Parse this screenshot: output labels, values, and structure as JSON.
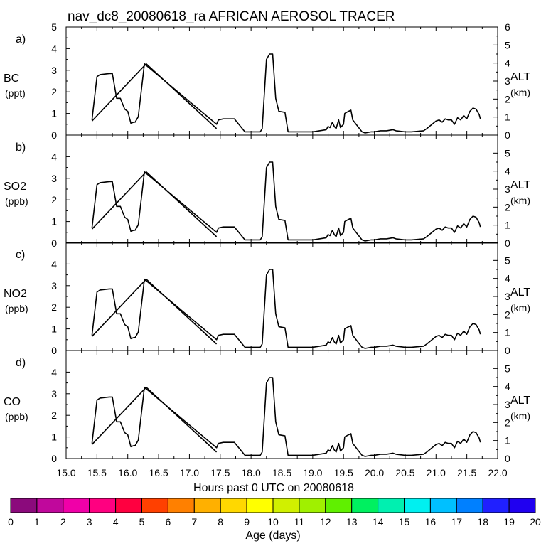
{
  "title": "nav_dc8_20080618_ra AFRICAN AEROSOL TRACER",
  "xlabel": "Hours past 0 UTC on 20080618",
  "x_ticks": [
    "15.0",
    "15.5",
    "16.0",
    "16.5",
    "17.0",
    "17.5",
    "18.0",
    "18.5",
    "19.0",
    "19.5",
    "20.0",
    "20.5",
    "21.0",
    "21.5",
    "22.0"
  ],
  "colorbar": {
    "label": "Age (days)",
    "ticks": [
      "0",
      "1",
      "2",
      "3",
      "4",
      "5",
      "6",
      "7",
      "8",
      "9",
      "10",
      "11",
      "12",
      "13",
      "14",
      "15",
      "16",
      "17",
      "18",
      "19",
      "20"
    ],
    "colors": [
      "#8b0a7c",
      "#c0089c",
      "#f000a8",
      "#ff0080",
      "#ff0040",
      "#ff4000",
      "#ff8000",
      "#ffb000",
      "#ffd800",
      "#ffff00",
      "#d0f000",
      "#a0f000",
      "#60f000",
      "#00f060",
      "#00f0b0",
      "#00f0f0",
      "#00c0ff",
      "#0080ff",
      "#2020ff",
      "#2000f0"
    ]
  },
  "chart_data": [
    {
      "type": "line",
      "panel_label": "a)",
      "ylabel": "BC",
      "yunit": "(ppt)",
      "y2label": "ALT",
      "y2unit": "(km)",
      "xlim": [
        15.0,
        22.0
      ],
      "ylim": [
        0,
        5
      ],
      "y2lim": [
        0,
        6
      ],
      "yticks": [
        "0",
        "1",
        "2",
        "3",
        "4",
        "5"
      ],
      "y2ticks": [
        "0",
        "1",
        "2",
        "3",
        "4",
        "5",
        "6"
      ],
      "series": [
        {
          "x": [
            15.42,
            15.5,
            15.55,
            15.7,
            15.75,
            15.82,
            15.85,
            15.88,
            15.95,
            16.0,
            16.05,
            16.1,
            16.12,
            16.17,
            16.25,
            16.27,
            17.44,
            17.47,
            17.55,
            17.7,
            17.73,
            17.9,
            18.15,
            18.18,
            18.25,
            18.3,
            18.35,
            18.4,
            18.45,
            18.55,
            18.6,
            19.0,
            19.22,
            19.25,
            19.28,
            19.32,
            19.35,
            19.38,
            19.42,
            19.45,
            19.5,
            19.52,
            19.58,
            19.62,
            19.65,
            19.8,
            19.85,
            19.95,
            20.0,
            20.1,
            20.2,
            20.3,
            20.35,
            20.5,
            20.6,
            20.8,
            20.85,
            21.0,
            21.05,
            21.1,
            21.15,
            21.2,
            21.25,
            21.3,
            21.35,
            21.4,
            21.45,
            21.5,
            21.55,
            21.6,
            21.65,
            21.7,
            21.72
          ],
          "y": [
            0.7,
            2.7,
            2.8,
            2.85,
            2.85,
            1.7,
            1.7,
            1.7,
            1.2,
            1.1,
            0.55,
            0.6,
            0.6,
            0.85,
            2.8,
            3.3,
            0.5,
            0.7,
            0.75,
            0.75,
            0.75,
            0.15,
            0.15,
            0.3,
            3.5,
            3.75,
            3.75,
            1.7,
            1.1,
            1.05,
            0.15,
            0.15,
            0.25,
            0.4,
            0.35,
            0.6,
            0.4,
            0.3,
            0.7,
            0.35,
            0.5,
            1.0,
            1.1,
            1.15,
            0.7,
            0.15,
            0.1,
            0.15,
            0.15,
            0.2,
            0.2,
            0.25,
            0.2,
            0.15,
            0.15,
            0.2,
            0.3,
            0.65,
            0.7,
            0.6,
            0.75,
            0.7,
            0.7,
            0.5,
            0.8,
            0.7,
            0.9,
            0.75,
            1.1,
            1.25,
            1.2,
            0.95,
            0.75
          ]
        },
        {
          "x": [
            15.42,
            16.3,
            17.44
          ],
          "y": [
            0.65,
            3.3,
            0.3
          ]
        }
      ]
    },
    {
      "type": "line",
      "panel_label": "b)",
      "ylabel": "SO2",
      "yunit": "(ppb)",
      "y2label": "ALT",
      "y2unit": "(km)",
      "xlim": [
        15.0,
        22.0
      ],
      "ylim": [
        0,
        5
      ],
      "y2lim": [
        0,
        6
      ],
      "yticks": [
        "0",
        "1",
        "2",
        "3",
        "4"
      ],
      "y2ticks": [
        "0",
        "1",
        "2",
        "3",
        "4",
        "5"
      ],
      "series": [
        {
          "x": [
            15.42,
            15.5,
            15.55,
            15.7,
            15.75,
            15.82,
            15.85,
            15.88,
            15.95,
            16.0,
            16.05,
            16.1,
            16.12,
            16.17,
            16.25,
            16.27,
            17.44,
            17.47,
            17.55,
            17.7,
            17.73,
            17.9,
            18.15,
            18.18,
            18.25,
            18.3,
            18.35,
            18.4,
            18.45,
            18.55,
            18.6,
            19.0,
            19.22,
            19.25,
            19.28,
            19.32,
            19.35,
            19.38,
            19.42,
            19.45,
            19.5,
            19.52,
            19.58,
            19.62,
            19.65,
            19.8,
            19.85,
            19.95,
            20.0,
            20.1,
            20.2,
            20.3,
            20.35,
            20.5,
            20.6,
            20.8,
            20.85,
            21.0,
            21.05,
            21.1,
            21.15,
            21.2,
            21.25,
            21.3,
            21.35,
            21.4,
            21.45,
            21.5,
            21.55,
            21.6,
            21.65,
            21.7,
            21.72
          ],
          "y": [
            0.7,
            2.7,
            2.8,
            2.85,
            2.85,
            1.7,
            1.7,
            1.7,
            1.2,
            1.1,
            0.55,
            0.6,
            0.6,
            0.85,
            2.8,
            3.3,
            0.5,
            0.7,
            0.75,
            0.75,
            0.75,
            0.15,
            0.15,
            0.3,
            3.5,
            3.75,
            3.75,
            1.7,
            1.1,
            1.05,
            0.15,
            0.15,
            0.25,
            0.4,
            0.35,
            0.6,
            0.4,
            0.3,
            0.7,
            0.35,
            0.5,
            1.0,
            1.1,
            1.15,
            0.7,
            0.15,
            0.1,
            0.15,
            0.15,
            0.2,
            0.2,
            0.25,
            0.2,
            0.15,
            0.15,
            0.2,
            0.3,
            0.65,
            0.7,
            0.6,
            0.75,
            0.7,
            0.7,
            0.5,
            0.8,
            0.7,
            0.9,
            0.75,
            1.1,
            1.25,
            1.2,
            0.95,
            0.75
          ]
        },
        {
          "x": [
            15.42,
            16.3,
            17.44
          ],
          "y": [
            0.65,
            3.3,
            0.3
          ]
        }
      ]
    },
    {
      "type": "line",
      "panel_label": "c)",
      "ylabel": "NO2",
      "yunit": "(ppb)",
      "y2label": "ALT",
      "y2unit": "(km)",
      "xlim": [
        15.0,
        22.0
      ],
      "ylim": [
        0,
        5
      ],
      "y2lim": [
        0,
        6
      ],
      "yticks": [
        "0",
        "1",
        "2",
        "3",
        "4"
      ],
      "y2ticks": [
        "0",
        "1",
        "2",
        "3",
        "4",
        "5"
      ],
      "series": [
        {
          "x": [
            15.42,
            15.5,
            15.55,
            15.7,
            15.75,
            15.82,
            15.85,
            15.88,
            15.95,
            16.0,
            16.05,
            16.1,
            16.12,
            16.17,
            16.25,
            16.27,
            17.44,
            17.47,
            17.55,
            17.7,
            17.73,
            17.9,
            18.15,
            18.18,
            18.25,
            18.3,
            18.35,
            18.4,
            18.45,
            18.55,
            18.6,
            19.0,
            19.22,
            19.25,
            19.28,
            19.32,
            19.35,
            19.38,
            19.42,
            19.45,
            19.5,
            19.52,
            19.58,
            19.62,
            19.65,
            19.8,
            19.85,
            19.95,
            20.0,
            20.1,
            20.2,
            20.3,
            20.35,
            20.5,
            20.6,
            20.8,
            20.85,
            21.0,
            21.05,
            21.1,
            21.15,
            21.2,
            21.25,
            21.3,
            21.35,
            21.4,
            21.45,
            21.5,
            21.55,
            21.6,
            21.65,
            21.7,
            21.72
          ],
          "y": [
            0.7,
            2.7,
            2.8,
            2.85,
            2.85,
            1.7,
            1.7,
            1.7,
            1.2,
            1.1,
            0.55,
            0.6,
            0.6,
            0.85,
            2.8,
            3.3,
            0.5,
            0.7,
            0.75,
            0.75,
            0.75,
            0.15,
            0.15,
            0.3,
            3.5,
            3.75,
            3.75,
            1.7,
            1.1,
            1.05,
            0.15,
            0.15,
            0.25,
            0.4,
            0.35,
            0.6,
            0.4,
            0.3,
            0.7,
            0.35,
            0.5,
            1.0,
            1.1,
            1.15,
            0.7,
            0.15,
            0.1,
            0.15,
            0.15,
            0.2,
            0.2,
            0.25,
            0.2,
            0.15,
            0.15,
            0.2,
            0.3,
            0.65,
            0.7,
            0.6,
            0.75,
            0.7,
            0.7,
            0.5,
            0.8,
            0.7,
            0.9,
            0.75,
            1.1,
            1.25,
            1.2,
            0.95,
            0.75
          ]
        },
        {
          "x": [
            15.42,
            16.3,
            17.44
          ],
          "y": [
            0.65,
            3.3,
            0.3
          ]
        }
      ]
    },
    {
      "type": "line",
      "panel_label": "d)",
      "ylabel": "CO",
      "yunit": "(ppb)",
      "y2label": "ALT",
      "y2unit": "(km)",
      "xlim": [
        15.0,
        22.0
      ],
      "ylim": [
        0,
        5
      ],
      "y2lim": [
        0,
        6
      ],
      "yticks": [
        "0",
        "1",
        "2",
        "3",
        "4"
      ],
      "y2ticks": [
        "0",
        "1",
        "2",
        "3",
        "4",
        "5"
      ],
      "series": [
        {
          "x": [
            15.42,
            15.5,
            15.55,
            15.7,
            15.75,
            15.82,
            15.85,
            15.88,
            15.95,
            16.0,
            16.05,
            16.1,
            16.12,
            16.17,
            16.25,
            16.27,
            17.44,
            17.47,
            17.55,
            17.7,
            17.73,
            17.9,
            18.15,
            18.18,
            18.25,
            18.3,
            18.35,
            18.4,
            18.45,
            18.55,
            18.6,
            19.0,
            19.22,
            19.25,
            19.28,
            19.32,
            19.35,
            19.38,
            19.42,
            19.45,
            19.5,
            19.52,
            19.58,
            19.62,
            19.65,
            19.8,
            19.85,
            19.95,
            20.0,
            20.1,
            20.2,
            20.3,
            20.35,
            20.5,
            20.6,
            20.8,
            20.85,
            21.0,
            21.05,
            21.1,
            21.15,
            21.2,
            21.25,
            21.3,
            21.35,
            21.4,
            21.45,
            21.5,
            21.55,
            21.6,
            21.65,
            21.7,
            21.72
          ],
          "y": [
            0.7,
            2.7,
            2.8,
            2.85,
            2.85,
            1.7,
            1.7,
            1.7,
            1.2,
            1.1,
            0.55,
            0.6,
            0.6,
            0.85,
            2.8,
            3.3,
            0.5,
            0.7,
            0.75,
            0.75,
            0.75,
            0.15,
            0.15,
            0.3,
            3.5,
            3.75,
            3.75,
            1.7,
            1.1,
            1.05,
            0.15,
            0.15,
            0.25,
            0.4,
            0.35,
            0.6,
            0.4,
            0.3,
            0.7,
            0.35,
            0.5,
            1.0,
            1.1,
            1.15,
            0.7,
            0.15,
            0.1,
            0.15,
            0.15,
            0.2,
            0.2,
            0.25,
            0.2,
            0.15,
            0.15,
            0.2,
            0.3,
            0.65,
            0.7,
            0.6,
            0.75,
            0.7,
            0.7,
            0.5,
            0.8,
            0.7,
            0.9,
            0.75,
            1.1,
            1.25,
            1.2,
            0.95,
            0.75
          ]
        },
        {
          "x": [
            15.42,
            16.3,
            17.44
          ],
          "y": [
            0.65,
            3.3,
            0.3
          ]
        }
      ]
    }
  ]
}
